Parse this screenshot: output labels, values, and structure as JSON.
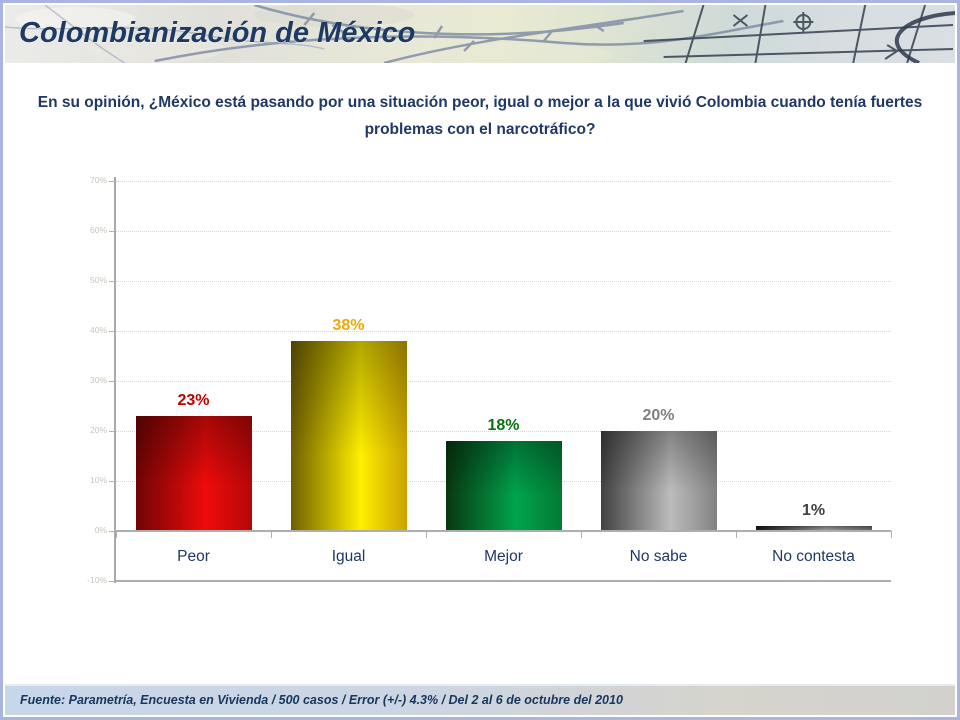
{
  "header": {
    "title": "Colombianización de México"
  },
  "question": {
    "text": "En su opinión, ¿México está pasando por una situación peor, igual o mejor a la que vivió Colombia cuando tenía fuertes problemas con el narcotráfico?"
  },
  "chart_data": {
    "type": "bar",
    "title": "",
    "xlabel": "",
    "ylabel": "",
    "categories": [
      "Peor",
      "Igual",
      "Mejor",
      "No sabe",
      "No contesta"
    ],
    "values": [
      23,
      38,
      18,
      20,
      1
    ],
    "value_labels": [
      "23%",
      "38%",
      "18%",
      "20%",
      "1%"
    ],
    "value_label_colors": [
      "#c00000",
      "#eda902",
      "#077410",
      "#808080",
      "#3f3f3f"
    ],
    "bar_gradients": [
      [
        "#700404",
        "#ee0b0b",
        "#b50707"
      ],
      [
        "#6f5f00",
        "#ffef00",
        "#caa300"
      ],
      [
        "#07380f",
        "#00a44d",
        "#047a35"
      ],
      [
        "#414141",
        "#bcbcbc",
        "#828282"
      ],
      [
        "#141414",
        "#8f8f8f",
        "#5f5f5f"
      ]
    ],
    "ylim": [
      -10,
      70
    ],
    "ytick_step": 10,
    "ytick_labels": [
      "70%",
      "60%",
      "50%",
      "40%",
      "30%",
      "20%",
      "10%",
      "0%",
      "-10%"
    ],
    "grid": "horizontal-dotted",
    "legend": "none"
  },
  "footer": {
    "source": "Fuente: Parametría, Encuesta en Vivienda / 500 casos / Error (+/-) 4.3% / Del 2 al 6 de octubre del 2010"
  },
  "colors": {
    "accent_navy": "#1f3864",
    "slide_border": "#a9b5de",
    "axis_gray": "#aeaeae",
    "grid_gray": "#d8d8d2",
    "footer_left": "#c8d6ea",
    "footer_right": "#d2d1ce"
  }
}
